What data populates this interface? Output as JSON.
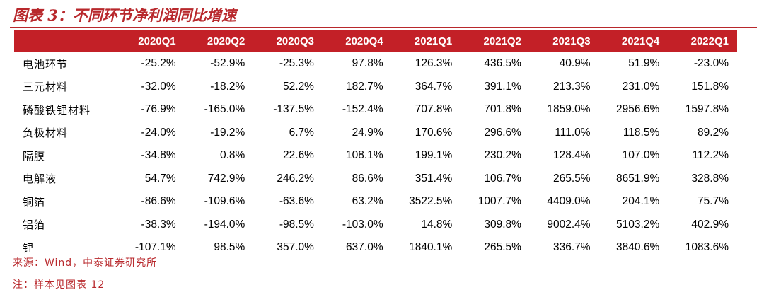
{
  "figure": {
    "title": "图表 3：不同环节净利润同比增速"
  },
  "table": {
    "header_corner": "",
    "columns": [
      "2020Q1",
      "2020Q2",
      "2020Q3",
      "2020Q4",
      "2021Q1",
      "2021Q2",
      "2021Q3",
      "2021Q4",
      "2022Q1"
    ],
    "rows": [
      {
        "label": "电池环节",
        "values": [
          "-25.2%",
          "-52.9%",
          "-25.3%",
          "97.8%",
          "126.3%",
          "436.5%",
          "40.9%",
          "51.9%",
          "-23.0%"
        ]
      },
      {
        "label": "三元材料",
        "values": [
          "-32.0%",
          "-18.2%",
          "52.2%",
          "182.7%",
          "364.7%",
          "391.1%",
          "213.3%",
          "231.0%",
          "151.8%"
        ]
      },
      {
        "label": "磷酸铁锂材料",
        "values": [
          "-76.9%",
          "-165.0%",
          "-137.5%",
          "-152.4%",
          "707.8%",
          "701.8%",
          "1859.0%",
          "2956.6%",
          "1597.8%"
        ]
      },
      {
        "label": "负极材料",
        "values": [
          "-24.0%",
          "-19.2%",
          "6.7%",
          "24.9%",
          "170.6%",
          "296.6%",
          "111.0%",
          "118.5%",
          "89.2%"
        ]
      },
      {
        "label": "隔膜",
        "values": [
          "-34.8%",
          "0.8%",
          "22.6%",
          "108.1%",
          "199.1%",
          "230.2%",
          "128.4%",
          "107.0%",
          "112.2%"
        ]
      },
      {
        "label": "电解液",
        "values": [
          "54.7%",
          "742.9%",
          "246.2%",
          "86.6%",
          "351.4%",
          "106.7%",
          "265.5%",
          "8651.9%",
          "328.8%"
        ]
      },
      {
        "label": "铜箔",
        "values": [
          "-86.6%",
          "-109.6%",
          "-63.6%",
          "63.2%",
          "3522.5%",
          "1007.7%",
          "4409.0%",
          "204.1%",
          "75.7%"
        ]
      },
      {
        "label": "铝箔",
        "values": [
          "-38.3%",
          "-194.0%",
          "-98.5%",
          "-103.0%",
          "14.8%",
          "309.8%",
          "9002.4%",
          "5103.2%",
          "402.9%"
        ]
      },
      {
        "label": "锂",
        "values": [
          "-107.1%",
          "98.5%",
          "357.0%",
          "637.0%",
          "1840.1%",
          "265.5%",
          "336.7%",
          "3840.6%",
          "1083.6%"
        ]
      }
    ]
  },
  "footer": {
    "source": "来源：Wind，中泰证券研究所",
    "note": "注：样本见图表 12"
  },
  "colors": {
    "accent_red": "#c32027",
    "title_red": "#b8282c"
  }
}
